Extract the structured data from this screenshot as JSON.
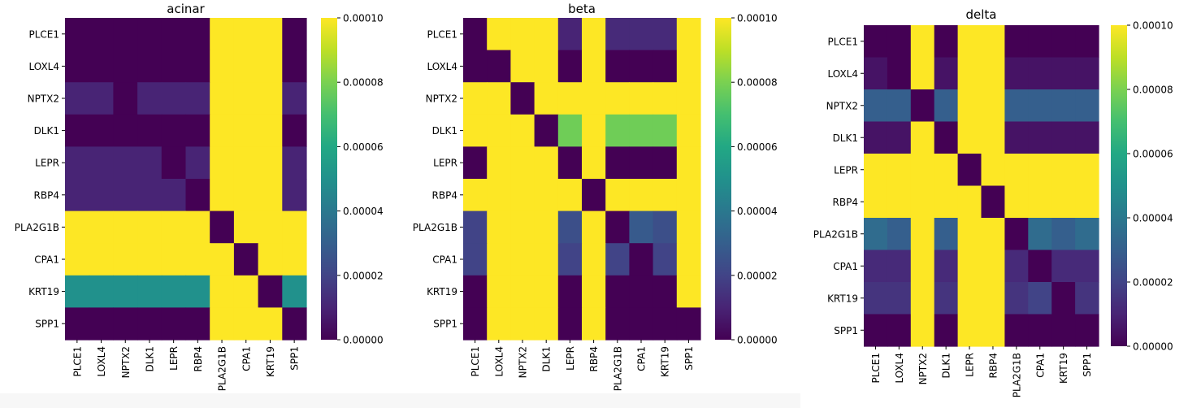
{
  "chart_data": [
    {
      "type": "heatmap",
      "title": "acinar",
      "genes": [
        "PLCE1",
        "LOXL4",
        "NPTX2",
        "DLK1",
        "LEPR",
        "RBP4",
        "PLA2G1B",
        "CPA1",
        "KRT19",
        "SPP1"
      ],
      "values": [
        [
          0.0,
          0.0,
          0.0,
          0.0,
          0.0,
          0.0,
          0.0001,
          0.0001,
          0.0001,
          0.0
        ],
        [
          0.0,
          0.0,
          0.0,
          0.0,
          0.0,
          0.0,
          0.0001,
          0.0001,
          0.0001,
          0.0
        ],
        [
          1e-05,
          1e-05,
          0.0,
          1e-05,
          1e-05,
          1e-05,
          0.0001,
          0.0001,
          0.0001,
          1e-05
        ],
        [
          0.0,
          0.0,
          0.0,
          0.0,
          0.0,
          0.0,
          0.0001,
          0.0001,
          0.0001,
          0.0
        ],
        [
          1e-05,
          1e-05,
          1e-05,
          1e-05,
          0.0,
          1e-05,
          0.0001,
          0.0001,
          0.0001,
          1e-05
        ],
        [
          1e-05,
          1e-05,
          1e-05,
          1e-05,
          1e-05,
          0.0,
          0.0001,
          0.0001,
          0.0001,
          1e-05
        ],
        [
          0.0001,
          0.0001,
          0.0001,
          0.0001,
          0.0001,
          0.0001,
          0.0,
          0.0001,
          0.0001,
          0.0001
        ],
        [
          0.0001,
          0.0001,
          0.0001,
          0.0001,
          0.0001,
          0.0001,
          0.0001,
          0.0,
          0.0001,
          0.0001
        ],
        [
          5e-05,
          5e-05,
          5e-05,
          5e-05,
          5e-05,
          5e-05,
          0.0001,
          0.0001,
          0.0,
          5e-05
        ],
        [
          0.0,
          0.0,
          0.0,
          0.0,
          0.0,
          0.0,
          0.0001,
          0.0001,
          0.0001,
          0.0
        ]
      ],
      "colorbar": {
        "min": 0,
        "max": 0.0001,
        "ticks": [
          "0.00000",
          "0.00002",
          "0.00004",
          "0.00006",
          "0.00008",
          "0.00010"
        ]
      },
      "colormap": "viridis"
    },
    {
      "type": "heatmap",
      "title": "beta",
      "genes": [
        "PLCE1",
        "LOXL4",
        "NPTX2",
        "DLK1",
        "LEPR",
        "RBP4",
        "PLA2G1B",
        "CPA1",
        "KRT19",
        "SPP1"
      ],
      "values": [
        [
          0.0,
          0.0001,
          0.0001,
          0.0001,
          1e-05,
          0.0001,
          1.2e-05,
          1.2e-05,
          1.2e-05,
          0.0001
        ],
        [
          0.0,
          0.0,
          0.0001,
          0.0001,
          0.0,
          0.0001,
          0.0,
          0.0,
          0.0,
          0.0001
        ],
        [
          0.0001,
          0.0001,
          0.0,
          0.0001,
          0.0001,
          0.0001,
          0.0001,
          0.0001,
          0.0001,
          0.0001
        ],
        [
          0.0001,
          0.0001,
          0.0001,
          0.0,
          7.8e-05,
          0.0001,
          7.8e-05,
          7.8e-05,
          7.8e-05,
          0.0001
        ],
        [
          0.0,
          0.0001,
          0.0001,
          0.0001,
          0.0,
          0.0001,
          0.0,
          0.0,
          0.0,
          0.0001
        ],
        [
          0.0001,
          0.0001,
          0.0001,
          0.0001,
          0.0001,
          0.0,
          0.0001,
          0.0001,
          0.0001,
          0.0001
        ],
        [
          2e-05,
          0.0001,
          0.0001,
          0.0001,
          2.4e-05,
          0.0001,
          0.0,
          2.8e-05,
          2.4e-05,
          0.0001
        ],
        [
          2e-05,
          0.0001,
          0.0001,
          0.0001,
          2e-05,
          0.0001,
          2e-05,
          0.0,
          2e-05,
          0.0001
        ],
        [
          0.0,
          0.0001,
          0.0001,
          0.0001,
          0.0,
          0.0001,
          0.0,
          0.0,
          0.0,
          0.0001
        ],
        [
          0.0,
          0.0001,
          0.0001,
          0.0001,
          0.0,
          0.0001,
          0.0,
          0.0,
          0.0,
          0.0
        ]
      ],
      "colorbar": {
        "min": 0,
        "max": 0.0001,
        "ticks": [
          "0.00000",
          "0.00002",
          "0.00004",
          "0.00006",
          "0.00008",
          "0.00010"
        ]
      },
      "colormap": "viridis"
    },
    {
      "type": "heatmap",
      "title": "delta",
      "genes": [
        "PLCE1",
        "LOXL4",
        "NPTX2",
        "DLK1",
        "LEPR",
        "RBP4",
        "PLA2G1B",
        "CPA1",
        "KRT19",
        "SPP1"
      ],
      "values": [
        [
          0.0,
          0.0,
          0.0001,
          0.0,
          0.0001,
          0.0001,
          0.0,
          0.0,
          0.0,
          0.0
        ],
        [
          5e-06,
          0.0,
          0.0001,
          5e-06,
          0.0001,
          0.0001,
          5e-06,
          5e-06,
          5e-06,
          5e-06
        ],
        [
          3e-05,
          3e-05,
          0.0,
          3e-05,
          0.0001,
          0.0001,
          3e-05,
          3e-05,
          3e-05,
          3e-05
        ],
        [
          5e-06,
          5e-06,
          0.0001,
          0.0,
          0.0001,
          0.0001,
          5e-06,
          5e-06,
          5e-06,
          5e-06
        ],
        [
          0.0001,
          0.0001,
          0.0001,
          0.0001,
          0.0,
          0.0001,
          0.0001,
          0.0001,
          0.0001,
          0.0001
        ],
        [
          0.0001,
          0.0001,
          0.0001,
          0.0001,
          0.0001,
          0.0,
          0.0001,
          0.0001,
          0.0001,
          0.0001
        ],
        [
          3.5e-05,
          3e-05,
          0.0001,
          3e-05,
          0.0001,
          0.0001,
          0.0,
          3.5e-05,
          3e-05,
          3.5e-05
        ],
        [
          1.2e-05,
          1.2e-05,
          0.0001,
          1.2e-05,
          0.0001,
          0.0001,
          1.2e-05,
          0.0,
          1.2e-05,
          1.2e-05
        ],
        [
          1.5e-05,
          1.5e-05,
          0.0001,
          1.5e-05,
          0.0001,
          0.0001,
          1.5e-05,
          2e-05,
          0.0,
          1.5e-05
        ],
        [
          0.0,
          0.0,
          0.0001,
          0.0,
          0.0001,
          0.0001,
          0.0,
          0.0,
          0.0,
          0.0
        ]
      ],
      "colorbar": {
        "min": 0,
        "max": 0.0001,
        "ticks": [
          "0.00000",
          "0.00002",
          "0.00004",
          "0.00006",
          "0.00008",
          "0.00010"
        ]
      },
      "colormap": "viridis"
    }
  ]
}
